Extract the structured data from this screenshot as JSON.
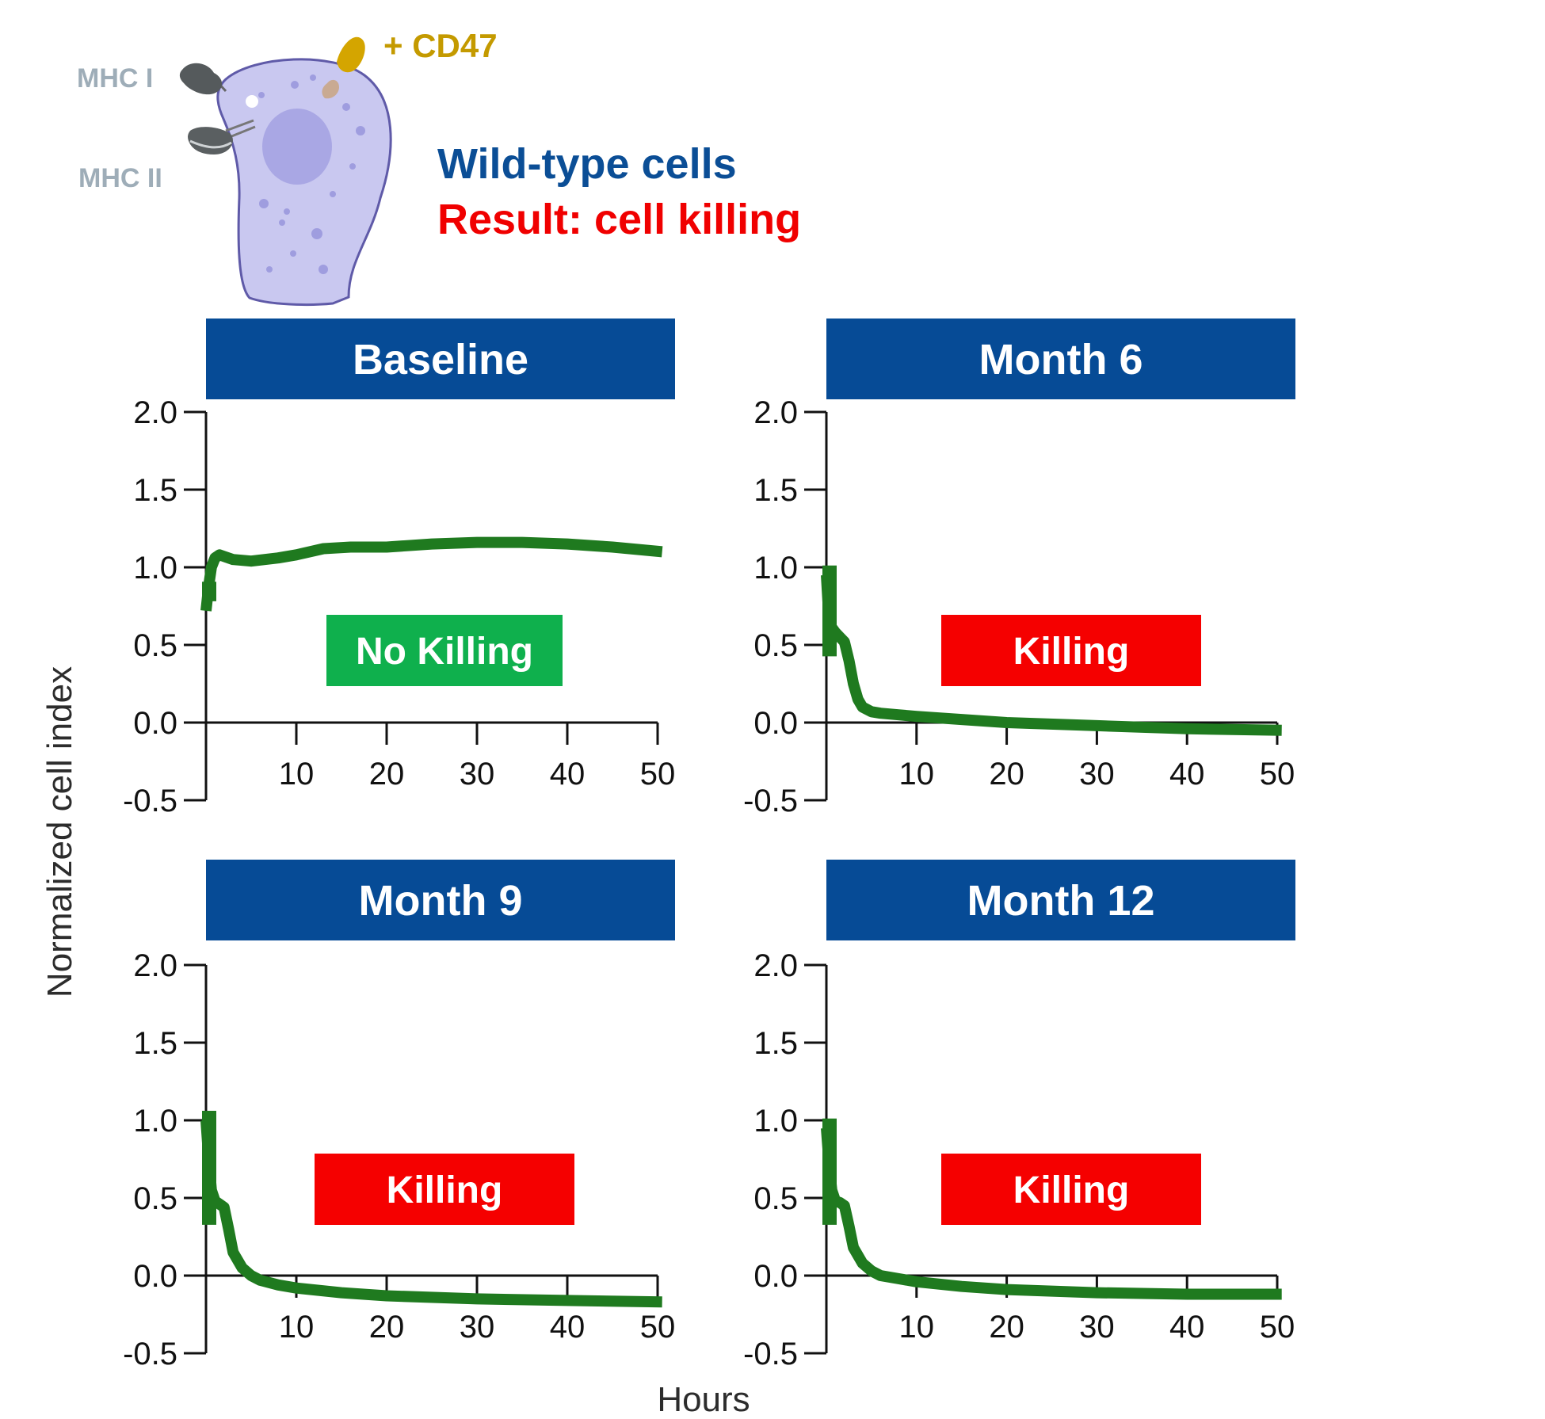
{
  "figure": {
    "header_line1": "Wild-type cells",
    "header_line2": "Result: cell killing",
    "xlabel": "Hours",
    "ylabel": "Normalized cell index"
  },
  "cell_diagram": {
    "labels": {
      "mhc1": "MHC I",
      "mhc2": "MHC II",
      "cd47": "+ CD47"
    },
    "colors": {
      "cell": "#c9c8f0",
      "nucleus": "#a9a7e4",
      "cd47": "#d4a500",
      "mhc": "#555a5c"
    }
  },
  "colors": {
    "title_bar": "#064b96",
    "header_blue": "#0b4e96",
    "header_red": "#f00000",
    "line": "#1f7a1f",
    "no_killing_badge": "#0fb04d",
    "killing_badge": "#f50000",
    "label_grey": "#9eadb8"
  },
  "chart_data": [
    {
      "type": "line",
      "title": "Baseline",
      "badge": "No Killing",
      "badge_color": "no_killing",
      "xticks": [
        "10",
        "20",
        "30",
        "40",
        "50"
      ],
      "yticks": [
        "2.0",
        "1.5",
        "1.0",
        "0.5",
        "0.0",
        "-0.5"
      ],
      "xlim": [
        0,
        50
      ],
      "ylim": [
        -0.5,
        2.0
      ],
      "series": [
        {
          "x": [
            0,
            0.3,
            0.6,
            1,
            1.5,
            2,
            3,
            5,
            8,
            10,
            13,
            16,
            20,
            25,
            30,
            35,
            40,
            45,
            50.5
          ],
          "y": [
            0.72,
            0.88,
            1.0,
            1.06,
            1.08,
            1.07,
            1.05,
            1.04,
            1.06,
            1.08,
            1.12,
            1.13,
            1.13,
            1.15,
            1.16,
            1.16,
            1.15,
            1.13,
            1.1
          ]
        }
      ]
    },
    {
      "type": "line",
      "title": "Month 6",
      "badge": "Killing",
      "badge_color": "killing",
      "xticks": [
        "10",
        "20",
        "30",
        "40",
        "50"
      ],
      "yticks": [
        "2.0",
        "1.5",
        "1.0",
        "0.5",
        "0.0",
        "-0.5"
      ],
      "xlim": [
        0,
        50
      ],
      "ylim": [
        -0.5,
        2.0
      ],
      "series": [
        {
          "x": [
            0,
            0.2,
            0.5,
            1,
            1.5,
            2,
            2.5,
            3,
            3.5,
            4,
            5,
            6,
            8,
            10,
            15,
            20,
            30,
            40,
            50.5
          ],
          "y": [
            0.95,
            0.75,
            0.62,
            0.58,
            0.55,
            0.52,
            0.4,
            0.25,
            0.15,
            0.1,
            0.07,
            0.06,
            0.05,
            0.04,
            0.02,
            0.0,
            -0.02,
            -0.04,
            -0.05
          ]
        }
      ]
    },
    {
      "type": "line",
      "title": "Month 9",
      "badge": "Killing",
      "badge_color": "killing",
      "xticks": [
        "10",
        "20",
        "30",
        "40",
        "50"
      ],
      "yticks": [
        "2.0",
        "1.5",
        "1.0",
        "0.5",
        "0.0",
        "-0.5"
      ],
      "xlim": [
        0,
        50
      ],
      "ylim": [
        -0.5,
        2.0
      ],
      "series": [
        {
          "x": [
            0,
            0.3,
            0.6,
            1,
            1.5,
            2,
            2.5,
            3,
            4,
            5,
            6,
            8,
            10,
            15,
            20,
            30,
            40,
            50.5
          ],
          "y": [
            1.0,
            0.75,
            0.55,
            0.48,
            0.46,
            0.44,
            0.3,
            0.15,
            0.05,
            0.0,
            -0.03,
            -0.06,
            -0.08,
            -0.11,
            -0.13,
            -0.15,
            -0.16,
            -0.17
          ]
        }
      ]
    },
    {
      "type": "line",
      "title": "Month 12",
      "badge": "Killing",
      "badge_color": "killing",
      "xticks": [
        "10",
        "20",
        "30",
        "40",
        "50"
      ],
      "yticks": [
        "2.0",
        "1.5",
        "1.0",
        "0.5",
        "0.0",
        "-0.5"
      ],
      "xlim": [
        0,
        50
      ],
      "ylim": [
        -0.5,
        2.0
      ],
      "series": [
        {
          "x": [
            0,
            0.3,
            0.6,
            1,
            1.5,
            2,
            2.5,
            3,
            4,
            5,
            6,
            8,
            10,
            15,
            20,
            30,
            40,
            50.5
          ],
          "y": [
            0.95,
            0.72,
            0.55,
            0.48,
            0.47,
            0.45,
            0.32,
            0.18,
            0.08,
            0.03,
            0.0,
            -0.02,
            -0.04,
            -0.07,
            -0.09,
            -0.11,
            -0.12,
            -0.12
          ]
        }
      ]
    }
  ]
}
